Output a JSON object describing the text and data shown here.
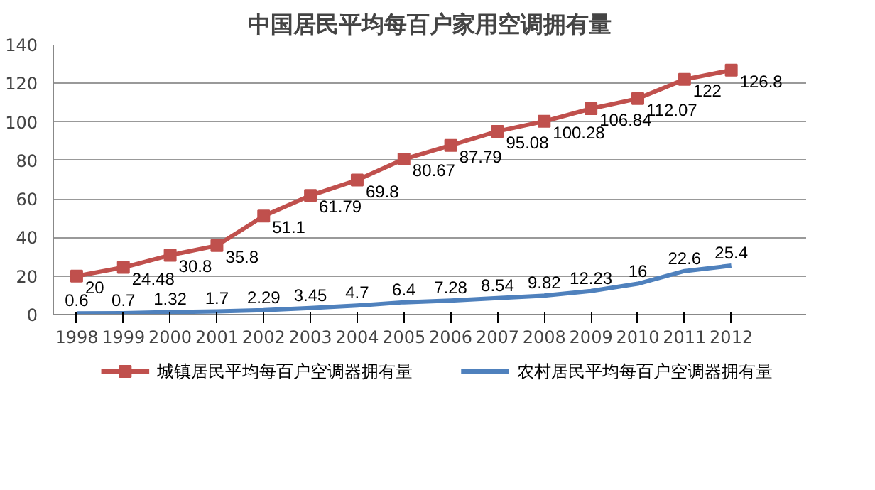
{
  "chart_data": {
    "type": "line",
    "title": "中国居民平均每百户家用空调拥有量",
    "categories": [
      "1998",
      "1999",
      "2000",
      "2001",
      "2002",
      "2003",
      "2004",
      "2005",
      "2006",
      "2007",
      "2008",
      "2009",
      "2010",
      "2011",
      "2012"
    ],
    "series": [
      {
        "name": "城镇居民平均每百户空调器拥有量",
        "color": "#c0504d",
        "marker": "square",
        "values": [
          20,
          24.48,
          30.8,
          35.8,
          51.1,
          61.79,
          69.8,
          80.67,
          87.79,
          95.08,
          100.28,
          106.84,
          112.07,
          122,
          126.8
        ]
      },
      {
        "name": "农村居民平均每百户空调器拥有量",
        "color": "#4f81bd",
        "marker": "none",
        "values": [
          0.6,
          0.7,
          1.32,
          1.7,
          2.29,
          3.45,
          4.7,
          6.4,
          7.28,
          8.54,
          9.82,
          12.23,
          16,
          22.6,
          25.4
        ]
      }
    ],
    "ylim": [
      0,
      140
    ],
    "yticks": [
      0,
      20,
      40,
      60,
      80,
      100,
      120,
      140
    ],
    "grid": "y",
    "legend": "bottom",
    "data_labels": true
  }
}
